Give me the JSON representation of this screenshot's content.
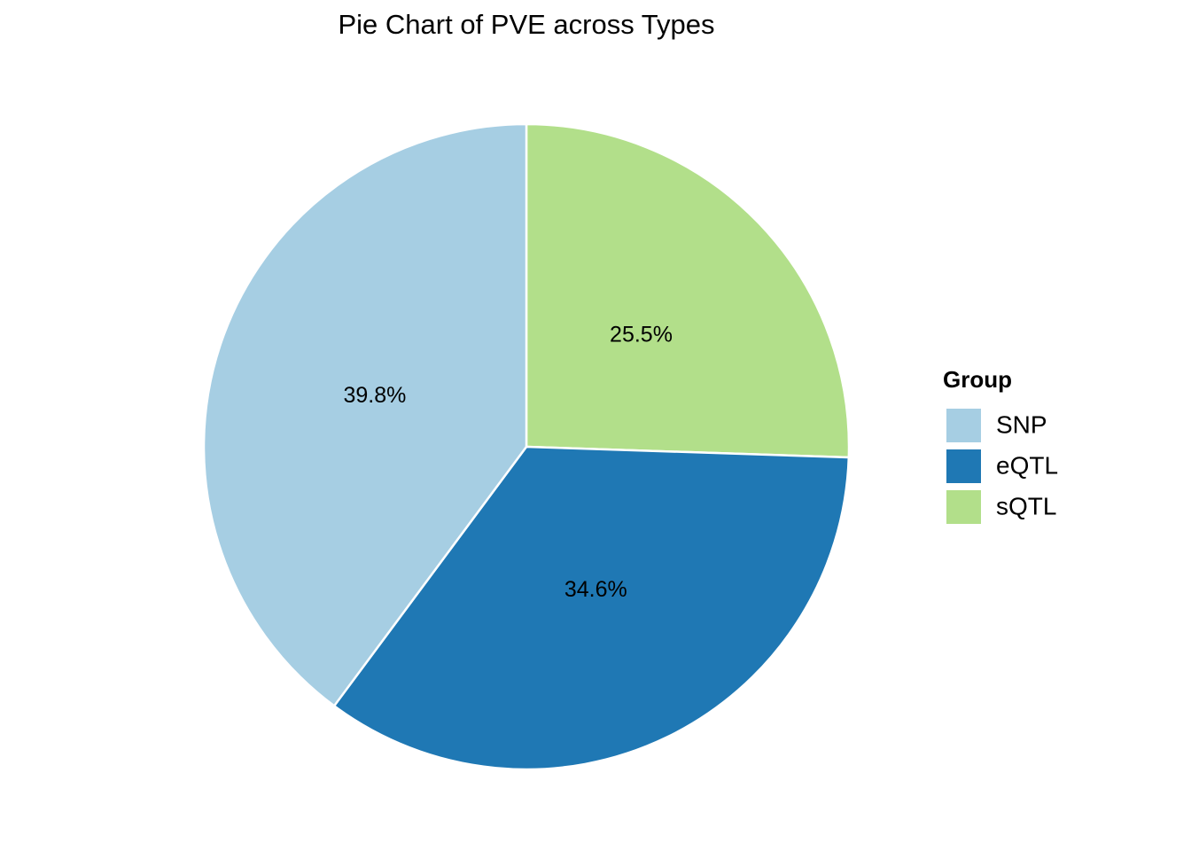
{
  "chart_data": {
    "type": "pie",
    "title": "Pie Chart of PVE across Types",
    "categories": [
      "SNP",
      "eQTL",
      "sQTL"
    ],
    "values": [
      39.8,
      34.6,
      25.5
    ],
    "value_labels": [
      "39.8%",
      "34.6%",
      "25.5%"
    ],
    "colors": [
      "#a6cee3",
      "#1f78b4",
      "#b2df8a"
    ],
    "legend_title": "Group",
    "legend": "right"
  }
}
